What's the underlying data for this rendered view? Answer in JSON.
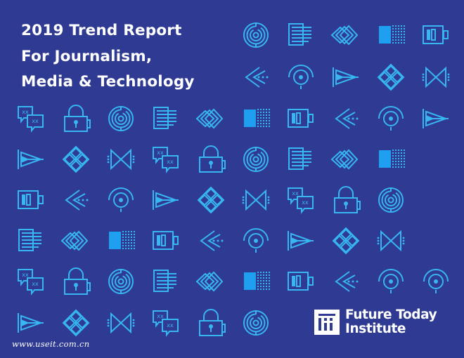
{
  "title_lines": [
    "2019 Trend Report",
    "For Journalism,",
    "Media & Technology"
  ],
  "brand": {
    "line1": "Future Today",
    "line2": "Institute"
  },
  "watermark": "www.useit.com.cn",
  "colors": {
    "background": "#2f3a93",
    "icon": "#37b6f1",
    "icon_fill": "#1f9ff0",
    "text": "#ffffff"
  },
  "icon_names": [
    "maze-circle-icon",
    "lines-panel-icon",
    "nested-diamonds-icon",
    "dotted-square-icon",
    "battery-icon",
    "arrow-chevrons-icon",
    "target-eye-icon",
    "play-triangle-icon",
    "diamond-grid-icon",
    "bowtie-icon",
    "chat-bubbles-icon",
    "lock-icon"
  ],
  "icon_grid": [
    [
      null,
      null,
      null,
      null,
      null,
      0,
      1,
      2,
      3,
      4
    ],
    [
      null,
      null,
      null,
      null,
      null,
      5,
      6,
      7,
      8,
      9
    ],
    [
      10,
      11,
      0,
      1,
      2,
      3,
      4,
      5,
      6,
      7
    ],
    [
      7,
      8,
      9,
      10,
      11,
      0,
      1,
      2,
      3,
      null
    ],
    [
      4,
      5,
      6,
      7,
      8,
      9,
      10,
      11,
      0,
      null
    ],
    [
      1,
      2,
      3,
      4,
      5,
      6,
      7,
      8,
      9,
      null
    ],
    [
      10,
      11,
      0,
      1,
      2,
      3,
      4,
      5,
      6,
      6
    ],
    [
      7,
      8,
      9,
      10,
      11,
      0,
      null,
      null,
      null,
      null
    ]
  ]
}
